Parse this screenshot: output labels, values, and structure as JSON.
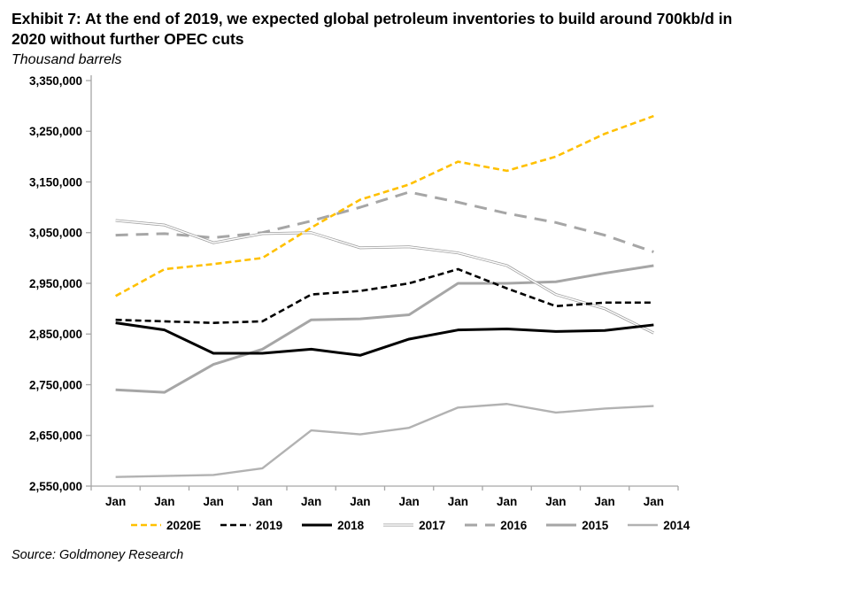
{
  "header": {
    "title_line1": "Exhibit 7: At the end of 2019, we expected global petroleum inventories to build around 700kb/d in",
    "title_line2": "2020 without further OPEC cuts",
    "subtitle": "Thousand barrels"
  },
  "source": "Source: Goldmoney Research",
  "chart_data": {
    "type": "line",
    "title": "Exhibit 7: At the end of 2019, we expected global petroleum inventories to build around 700kb/d in 2020 without further OPEC cuts",
    "subtitle": "Thousand barrels",
    "xlabel": "",
    "ylabel": "Thousand barrels",
    "categories": [
      "Jan",
      "Jan",
      "Jan",
      "Jan",
      "Jan",
      "Jan",
      "Jan",
      "Jan",
      "Jan",
      "Jan",
      "Jan",
      "Jan"
    ],
    "ylim": [
      2550000,
      3350000
    ],
    "ytick_step": 100000,
    "grid": false,
    "legend_position": "bottom",
    "axis_color": "#a6a6a6",
    "series": [
      {
        "name": "2020E",
        "color": "#FFC000",
        "style": "dashed",
        "width": 2.6,
        "values": [
          2925000,
          2978000,
          2988000,
          3000000,
          3060000,
          3115000,
          3145000,
          3190000,
          3172000,
          3200000,
          3245000,
          3280000
        ]
      },
      {
        "name": "2019",
        "color": "#000000",
        "style": "dashed",
        "width": 2.6,
        "values": [
          2878000,
          2875000,
          2872000,
          2875000,
          2928000,
          2935000,
          2950000,
          2978000,
          2940000,
          2905000,
          2912000,
          2912000
        ]
      },
      {
        "name": "2018",
        "color": "#000000",
        "style": "solid",
        "width": 3,
        "values": [
          2872000,
          2858000,
          2812000,
          2812000,
          2820000,
          2808000,
          2840000,
          2858000,
          2860000,
          2855000,
          2857000,
          2868000
        ]
      },
      {
        "name": "2017",
        "color": "#9d9d9d",
        "style": "double",
        "width": 3,
        "values": [
          3074000,
          3065000,
          3030000,
          3048000,
          3050000,
          3020000,
          3022000,
          3010000,
          2985000,
          2928000,
          2900000,
          2852000
        ]
      },
      {
        "name": "2016",
        "color": "#a6a6a6",
        "style": "longdash",
        "width": 3,
        "values": [
          3045000,
          3048000,
          3040000,
          3050000,
          3073000,
          3100000,
          3130000,
          3110000,
          3088000,
          3070000,
          3045000,
          3012000
        ]
      },
      {
        "name": "2015",
        "color": "#a6a6a6",
        "style": "solid",
        "width": 3,
        "values": [
          2740000,
          2735000,
          2790000,
          2820000,
          2878000,
          2880000,
          2888000,
          2950000,
          2950000,
          2953000,
          2970000,
          2985000
        ]
      },
      {
        "name": "2014",
        "color": "#b2b2b2",
        "style": "solid",
        "width": 2.4,
        "values": [
          2568000,
          2570000,
          2572000,
          2585000,
          2660000,
          2652000,
          2665000,
          2705000,
          2712000,
          2695000,
          2703000,
          2708000
        ]
      }
    ]
  }
}
